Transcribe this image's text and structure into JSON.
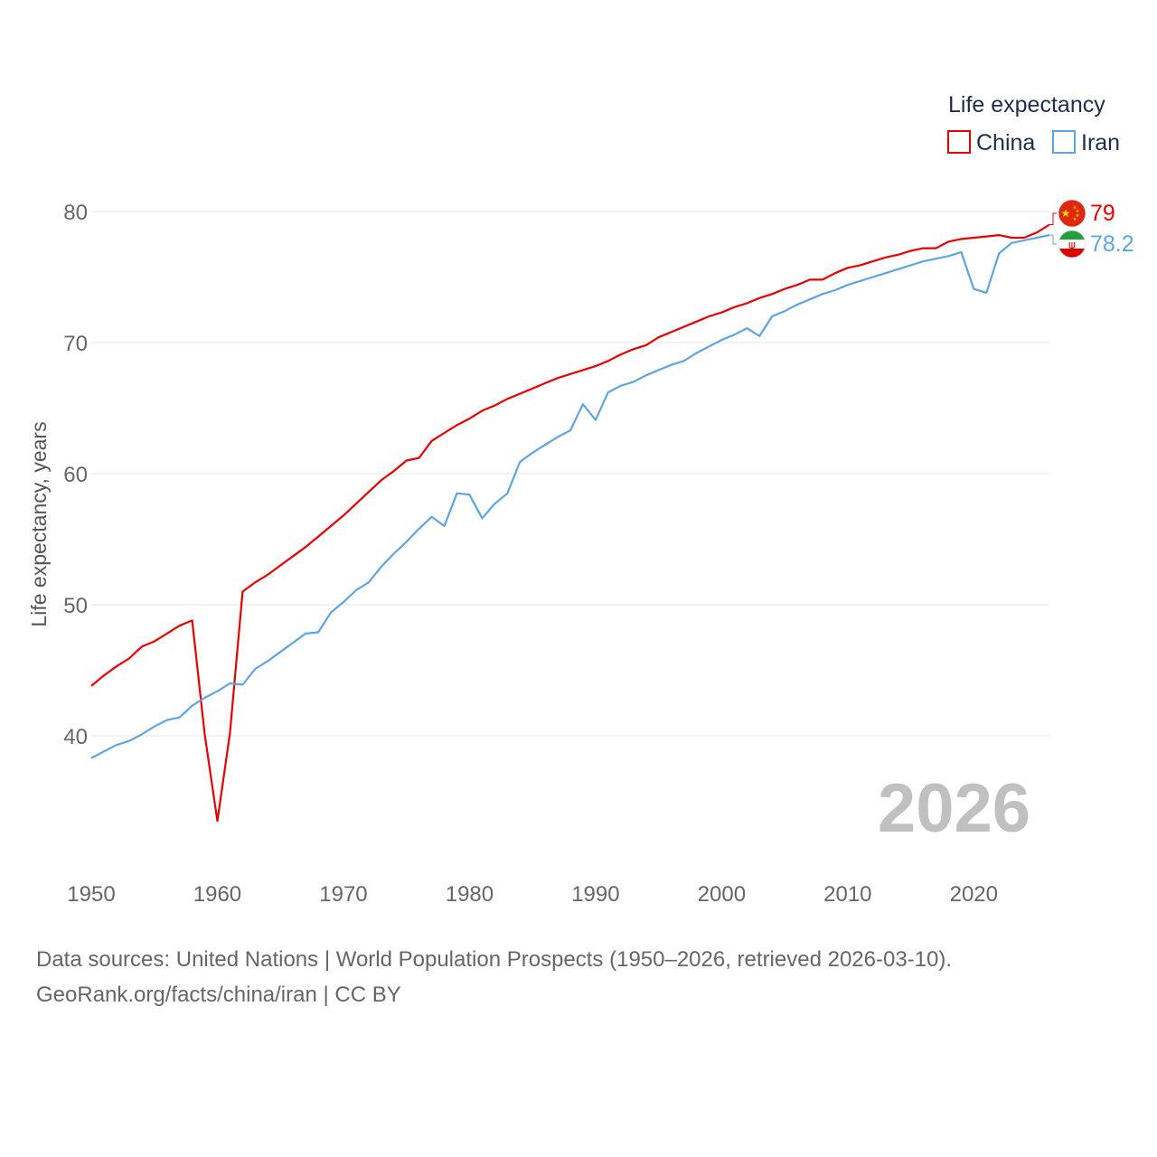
{
  "chart_data": {
    "type": "line",
    "ylabel": "Life expectancy, years",
    "xlabel": "",
    "xlim": [
      1950,
      2026
    ],
    "ylim": [
      31,
      82
    ],
    "x_ticks": [
      1950,
      1960,
      1970,
      1980,
      1990,
      2000,
      2010,
      2020
    ],
    "y_ticks": [
      40,
      50,
      60,
      70,
      80
    ],
    "legend_title": "Life expectancy",
    "legend_position": "top-right",
    "year_watermark": "2026",
    "x": [
      1950,
      1951,
      1952,
      1953,
      1954,
      1955,
      1956,
      1957,
      1958,
      1959,
      1960,
      1961,
      1962,
      1963,
      1964,
      1965,
      1966,
      1967,
      1968,
      1969,
      1970,
      1971,
      1972,
      1973,
      1974,
      1975,
      1976,
      1977,
      1978,
      1979,
      1980,
      1981,
      1982,
      1983,
      1984,
      1985,
      1986,
      1987,
      1988,
      1989,
      1990,
      1991,
      1992,
      1993,
      1994,
      1995,
      1996,
      1997,
      1998,
      1999,
      2000,
      2001,
      2002,
      2003,
      2004,
      2005,
      2006,
      2007,
      2008,
      2009,
      2010,
      2011,
      2012,
      2013,
      2014,
      2015,
      2016,
      2017,
      2018,
      2019,
      2020,
      2021,
      2022,
      2023,
      2024,
      2025,
      2026
    ],
    "series": [
      {
        "name": "China",
        "color": "#e60000",
        "end_label": "79",
        "flag": "china-flag",
        "values": [
          43.8,
          44.6,
          45.3,
          45.9,
          46.8,
          47.2,
          47.8,
          48.4,
          48.8,
          40.1,
          33.5,
          40.2,
          51.0,
          51.7,
          52.3,
          53.0,
          53.7,
          54.4,
          55.2,
          56.0,
          56.8,
          57.7,
          58.6,
          59.5,
          60.2,
          61.0,
          61.2,
          62.5,
          63.1,
          63.7,
          64.2,
          64.8,
          65.2,
          65.7,
          66.1,
          66.5,
          66.9,
          67.3,
          67.6,
          67.9,
          68.2,
          68.6,
          69.1,
          69.5,
          69.8,
          70.4,
          70.8,
          71.2,
          71.6,
          72.0,
          72.3,
          72.7,
          73.0,
          73.4,
          73.7,
          74.1,
          74.4,
          74.8,
          74.8,
          75.3,
          75.7,
          75.9,
          76.2,
          76.5,
          76.7,
          77.0,
          77.2,
          77.2,
          77.7,
          77.9,
          78.0,
          78.1,
          78.2,
          78.0,
          78.0,
          78.4,
          79.0
        ]
      },
      {
        "name": "Iran",
        "color": "#5da5e2",
        "end_label": "78.2",
        "flag": "iran-flag",
        "values": [
          38.3,
          38.8,
          39.3,
          39.6,
          40.1,
          40.7,
          41.2,
          41.4,
          42.3,
          42.9,
          43.4,
          44.0,
          43.9,
          45.1,
          45.7,
          46.4,
          47.1,
          47.8,
          47.9,
          49.4,
          50.2,
          51.1,
          51.7,
          52.9,
          53.9,
          54.8,
          55.8,
          56.7,
          56.0,
          58.5,
          58.4,
          56.6,
          57.7,
          58.5,
          60.9,
          61.6,
          62.2,
          62.8,
          63.3,
          65.3,
          64.1,
          66.2,
          66.7,
          67.0,
          67.5,
          67.9,
          68.3,
          68.6,
          69.2,
          69.7,
          70.2,
          70.6,
          71.1,
          70.5,
          72.0,
          72.4,
          72.9,
          73.3,
          73.7,
          74.0,
          74.4,
          74.7,
          75.0,
          75.3,
          75.6,
          75.9,
          76.2,
          76.4,
          76.6,
          76.9,
          74.1,
          73.8,
          76.8,
          77.6,
          77.8,
          78.0,
          78.2
        ]
      }
    ]
  },
  "footer": {
    "line1": "Data sources: United Nations | World Population Prospects (1950–2026, retrieved 2026-03-10).",
    "line2": "GeoRank.org/facts/china/iran | CC BY"
  }
}
